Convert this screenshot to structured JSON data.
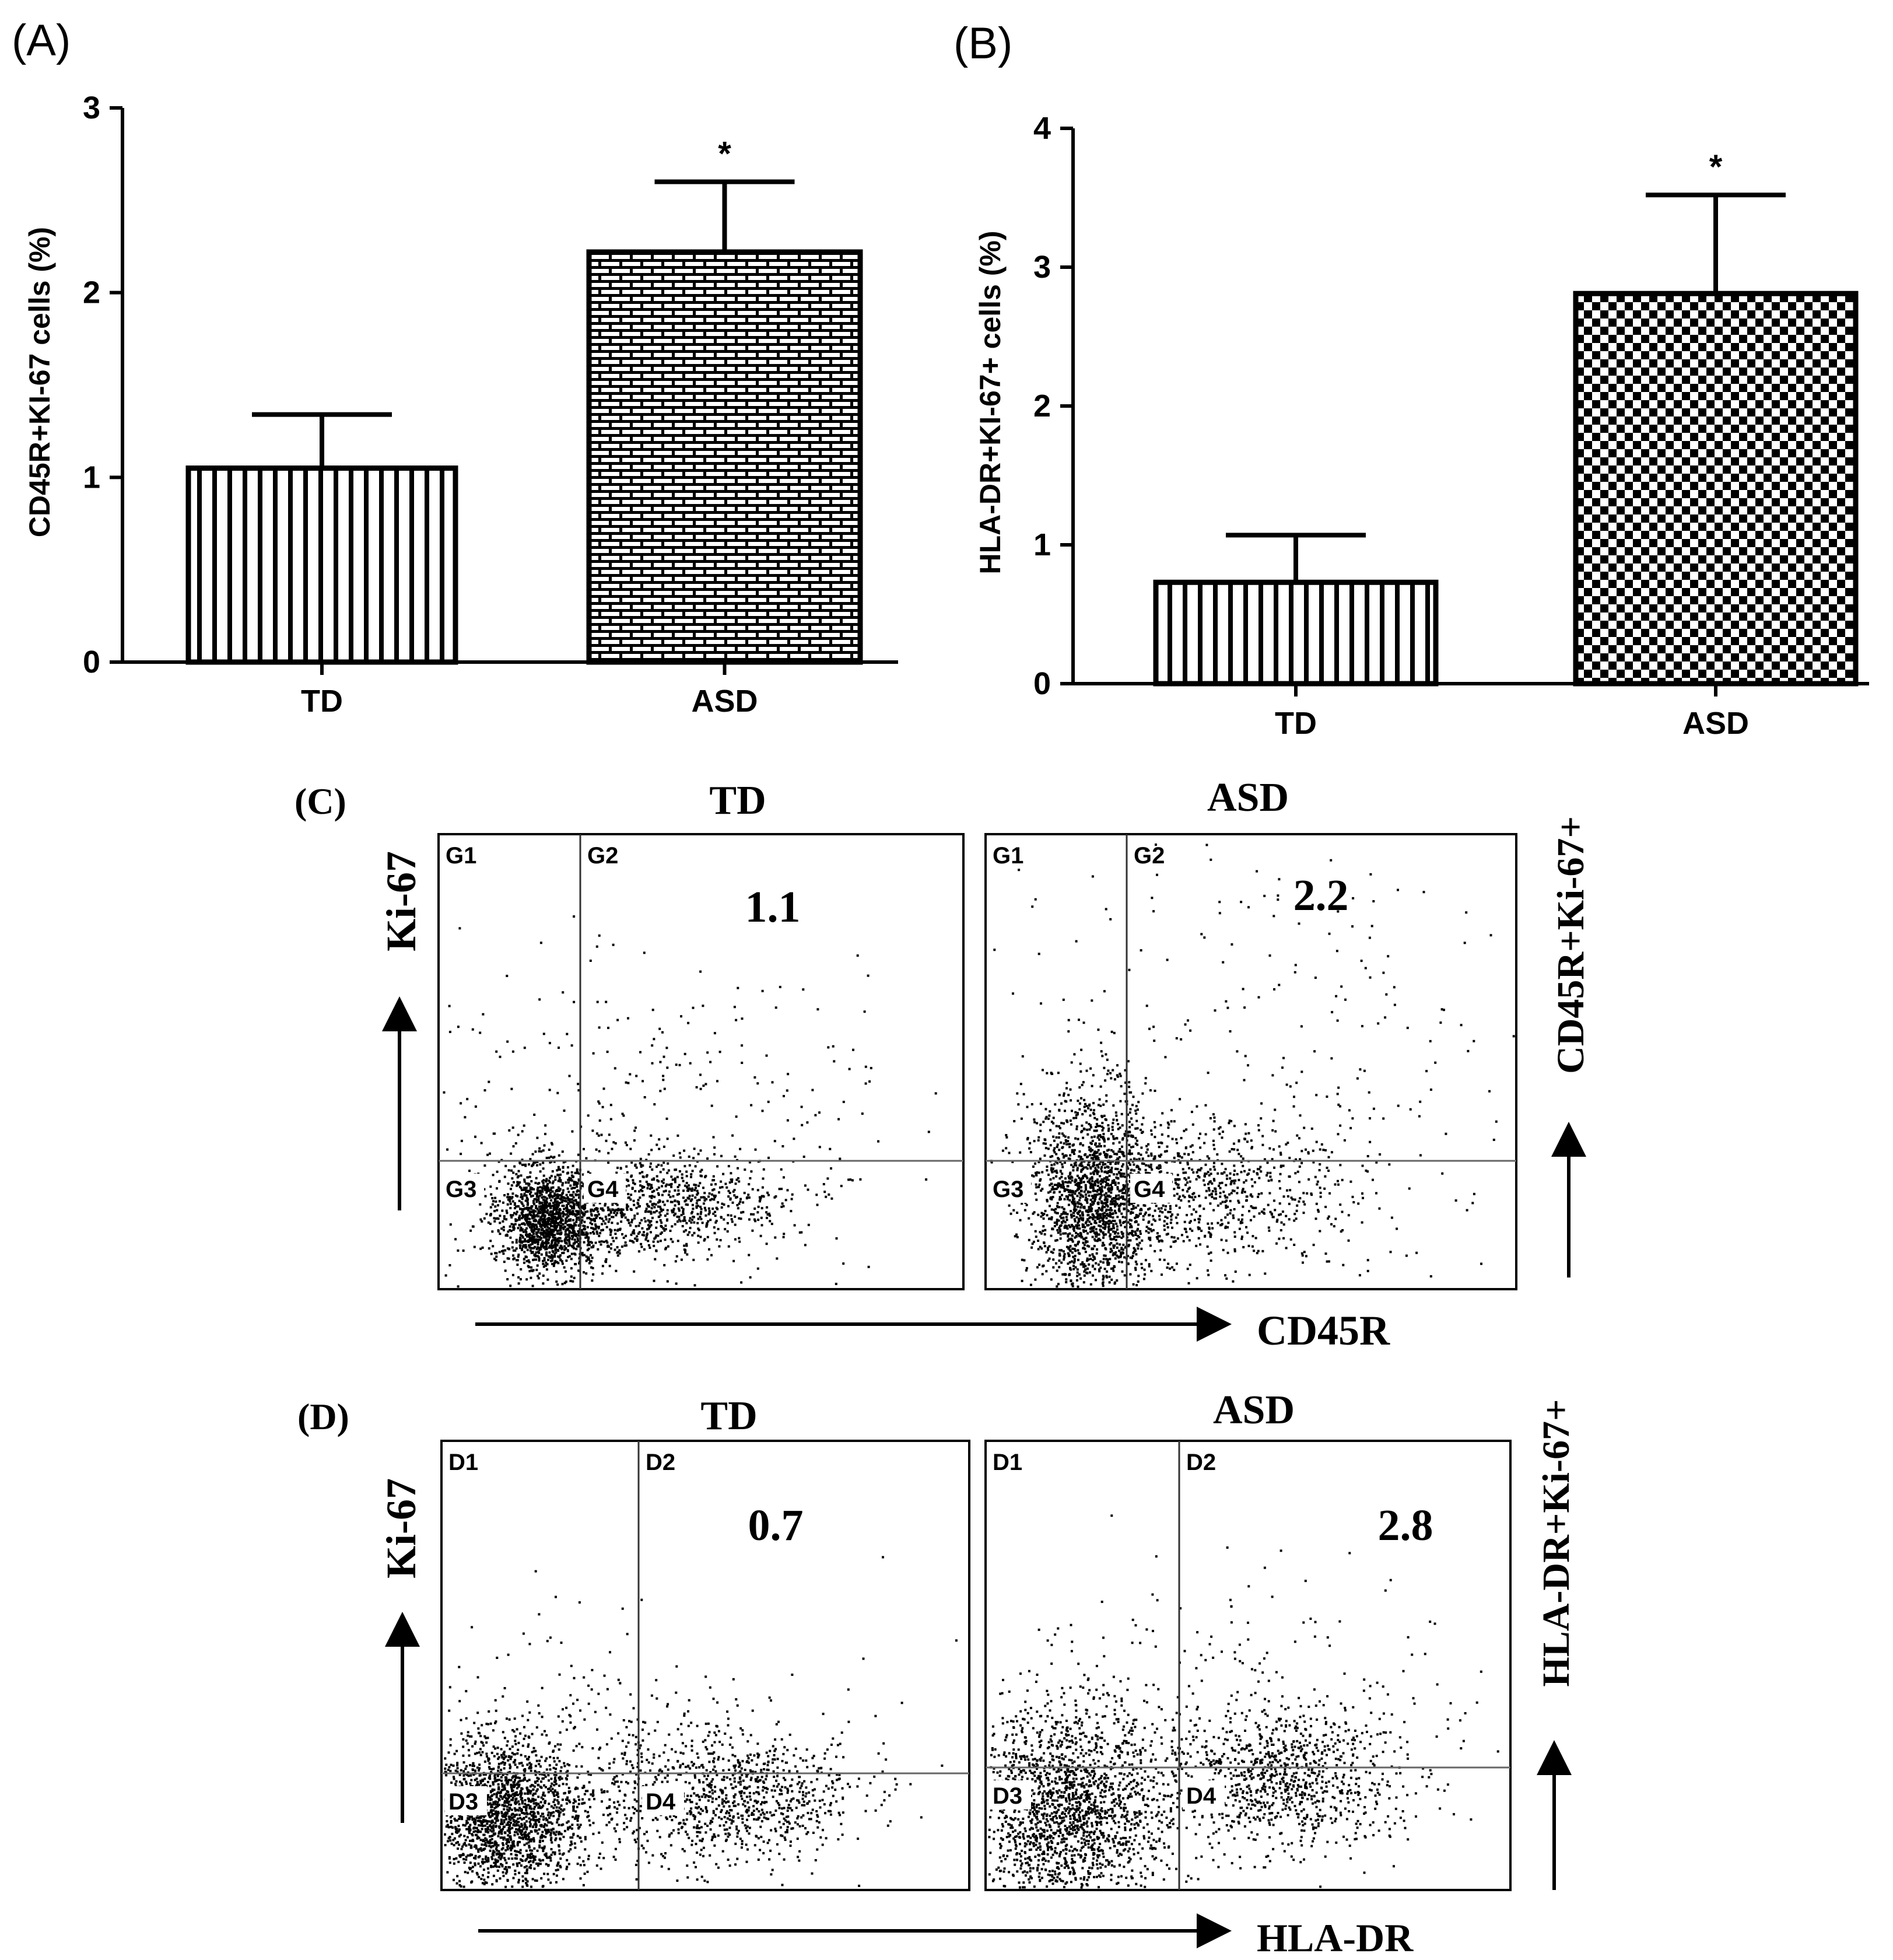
{
  "chart_data": [
    {
      "panel": "(A)",
      "type": "bar",
      "categories": [
        "TD",
        "ASD"
      ],
      "values": [
        1.05,
        2.22
      ],
      "errors": [
        0.29,
        0.38
      ],
      "ylabel": "CD45R+KI-67 cells (%)",
      "ylim": [
        0,
        3
      ],
      "yticks": [
        "0",
        "1",
        "2",
        "3"
      ],
      "annotation": "*",
      "patterns": [
        "vertical-stripes",
        "brick"
      ]
    },
    {
      "panel": "(B)",
      "type": "bar",
      "categories": [
        "TD",
        "ASD"
      ],
      "values": [
        0.73,
        2.81
      ],
      "errors": [
        0.34,
        0.71
      ],
      "ylabel": "HLA-DR+KI-67+ cells (%)",
      "ylim": [
        0,
        4
      ],
      "yticks": [
        "0",
        "1",
        "2",
        "3",
        "4"
      ],
      "annotation": "*",
      "patterns": [
        "vertical-stripes",
        "checker"
      ]
    },
    {
      "panel": "(C)",
      "type": "scatter",
      "yaxis": "Ki-67",
      "xaxis": "CD45R",
      "side_label": "CD45R+Ki-67+",
      "plots": [
        {
          "title": "TD",
          "value": "1.1",
          "gates": [
            "G1",
            "G2",
            "G3",
            "G4"
          ]
        },
        {
          "title": "ASD",
          "value": "2.2",
          "gates": [
            "G1",
            "G2",
            "G3",
            "G4"
          ]
        }
      ]
    },
    {
      "panel": "(D)",
      "type": "scatter",
      "yaxis": "Ki-67",
      "xaxis": "HLA-DR",
      "side_label": "HLA-DR+Ki-67+",
      "plots": [
        {
          "title": "TD",
          "value": "0.7",
          "gates": [
            "D1",
            "D2",
            "D3",
            "D4"
          ]
        },
        {
          "title": "ASD",
          "value": "2.8",
          "gates": [
            "D1",
            "D2",
            "D3",
            "D4"
          ]
        }
      ]
    }
  ]
}
